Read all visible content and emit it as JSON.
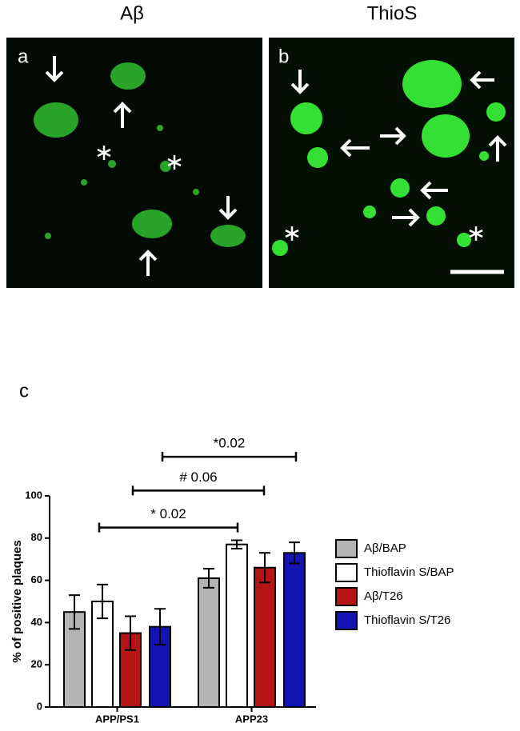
{
  "panels": [
    {
      "label": "a",
      "title": "Aβ"
    },
    {
      "label": "b",
      "title": "ThioS"
    }
  ],
  "chart_data": {
    "type": "bar",
    "panel_label": "c",
    "ylabel": "% of positive plaques",
    "categories": [
      "APP/PS1",
      "APP23"
    ],
    "series": [
      {
        "name": "Aβ/BAP",
        "color": "#b4b4b4",
        "values": [
          45,
          61
        ],
        "errors": [
          8,
          4.5
        ]
      },
      {
        "name": "Thioflavin S/BAP",
        "color": "#ffffff",
        "values": [
          50,
          77
        ],
        "errors": [
          8,
          2
        ]
      },
      {
        "name": "Aβ/T26",
        "color": "#b41414",
        "values": [
          35,
          66
        ],
        "errors": [
          8,
          7
        ]
      },
      {
        "name": "Thioflavin S/T26",
        "color": "#1414b4",
        "values": [
          38,
          73
        ],
        "errors": [
          8.5,
          5
        ]
      }
    ],
    "ylim": [
      0,
      100
    ],
    "yticks": [
      0,
      20,
      40,
      60,
      80,
      100
    ],
    "annotations": [
      {
        "label": "* 0.02",
        "y": 85
      },
      {
        "label": "# 0.06",
        "y": 102.5
      },
      {
        "label": "*0.02",
        "y": 118.5
      }
    ],
    "legend": "right"
  }
}
